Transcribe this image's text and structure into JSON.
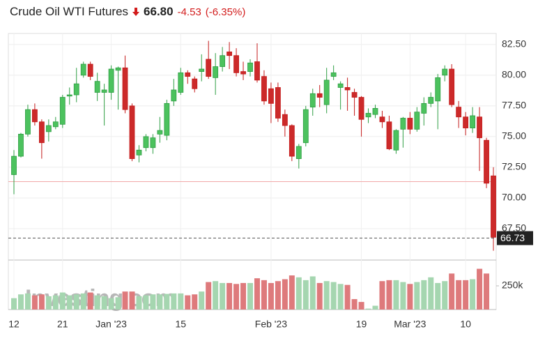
{
  "chart_data": {
    "type": "candlestick",
    "title": "Crude Oil WTI Futures",
    "last": "66.80",
    "change": "-4.53",
    "change_pct": "(-6.35%)",
    "watermark": "Investing.com",
    "categories": [
      "12",
      null,
      null,
      null,
      null,
      null,
      null,
      "21",
      null,
      null,
      null,
      null,
      null,
      null,
      "Jan '23",
      null,
      null,
      null,
      null,
      null,
      null,
      null,
      null,
      null,
      "15",
      null,
      null,
      null,
      null,
      null,
      null,
      null,
      null,
      null,
      null,
      null,
      null,
      "Feb '23",
      null,
      null,
      null,
      null,
      null,
      null,
      null,
      null,
      null,
      null,
      null,
      null,
      "19",
      null,
      null,
      null,
      null,
      null,
      null,
      "Mar '23",
      null,
      null,
      null,
      null,
      null,
      null,
      null,
      "10",
      null,
      null,
      null,
      null
    ],
    "open": [
      71.9,
      73.4,
      75.2,
      77.2,
      76.2,
      75.4,
      75.8,
      76.0,
      78.3,
      78.4,
      80.0,
      80.9,
      78.6,
      78.6,
      78.6,
      80.4,
      80.6,
      77.5,
      73.5,
      74.1,
      74.1,
      75.2,
      75.1,
      77.9,
      78.6,
      80.2,
      79.7,
      80.3,
      81.3,
      79.8,
      80.7,
      81.9,
      81.6,
      80.3,
      80.3,
      81.1,
      79.9,
      78.9,
      79.0,
      76.8,
      75.9,
      73.2,
      74.5,
      77.4,
      78.5,
      77.6,
      79.9,
      79.0,
      79.0,
      78.6,
      78.2,
      76.6,
      76.8,
      76.6,
      76.2,
      73.9,
      75.6,
      76.5,
      75.6,
      76.9,
      77.7,
      77.9,
      80.0,
      80.5,
      77.4,
      76.6,
      75.7,
      76.6,
      74.7,
      71.8
    ],
    "high": [
      73.9,
      75.3,
      77.6,
      77.7,
      76.4,
      76.4,
      76.6,
      78.4,
      79.0,
      80.6,
      81.1,
      81.1,
      80.2,
      79.3,
      80.8,
      80.7,
      81.6,
      77.7,
      74.3,
      75.2,
      75.2,
      76.6,
      78.0,
      79.7,
      80.6,
      80.4,
      79.9,
      81.7,
      82.8,
      81.8,
      82.3,
      82.7,
      82.2,
      81.1,
      81.3,
      82.6,
      80.4,
      79.4,
      79.4,
      77.2,
      76.0,
      74.4,
      77.5,
      78.9,
      79.2,
      80.6,
      80.8,
      79.5,
      79.8,
      78.9,
      78.3,
      77.3,
      77.6,
      77.1,
      76.7,
      75.6,
      76.6,
      77.0,
      77.4,
      78.2,
      78.6,
      80.1,
      80.8,
      80.9,
      77.9,
      77.0,
      77.4,
      77.4,
      74.9,
      72.5
    ],
    "low": [
      70.3,
      73.3,
      75.0,
      75.9,
      73.2,
      74.6,
      75.6,
      75.7,
      77.6,
      77.8,
      79.8,
      79.6,
      77.9,
      75.9,
      78.0,
      77.2,
      76.9,
      73.0,
      72.9,
      73.8,
      73.6,
      74.5,
      74.7,
      77.5,
      78.4,
      79.3,
      78.6,
      79.5,
      79.7,
      78.4,
      80.3,
      80.5,
      79.9,
      79.6,
      79.9,
      79.4,
      77.6,
      76.1,
      76.2,
      75.0,
      73.0,
      72.4,
      74.2,
      76.7,
      77.4,
      76.9,
      79.6,
      77.2,
      77.1,
      76.7,
      75.0,
      76.1,
      76.5,
      75.7,
      73.9,
      73.6,
      74.1,
      75.2,
      75.4,
      75.9,
      77.4,
      75.6,
      79.5,
      77.4,
      75.7,
      75.1,
      75.3,
      72.2,
      70.8,
      65.7
    ],
    "close": [
      73.4,
      75.2,
      77.2,
      76.2,
      74.5,
      75.9,
      76.2,
      78.2,
      78.4,
      79.3,
      80.9,
      79.9,
      79.5,
      78.8,
      80.5,
      80.6,
      77.2,
      73.2,
      73.9,
      75.0,
      74.9,
      75.5,
      77.7,
      78.8,
      80.2,
      79.9,
      78.9,
      80.5,
      79.9,
      80.7,
      81.6,
      81.6,
      80.2,
      80.1,
      81.0,
      79.6,
      77.9,
      77.7,
      76.5,
      75.9,
      73.4,
      74.2,
      77.2,
      78.5,
      78.2,
      79.6,
      80.2,
      79.3,
      78.8,
      78.2,
      76.4,
      76.9,
      77.3,
      76.2,
      74.0,
      75.5,
      76.5,
      75.6,
      77.0,
      77.7,
      78.2,
      79.8,
      80.5,
      77.6,
      76.6,
      75.7,
      76.7,
      74.9,
      71.2,
      66.8
    ],
    "volume": [
      120000,
      160000,
      170000,
      150000,
      160000,
      140000,
      150000,
      180000,
      150000,
      160000,
      170000,
      180000,
      150000,
      140000,
      120000,
      130000,
      190000,
      190000,
      140000,
      150000,
      160000,
      160000,
      165000,
      170000,
      170000,
      150000,
      160000,
      190000,
      290000,
      300000,
      280000,
      280000,
      270000,
      280000,
      280000,
      330000,
      310000,
      280000,
      300000,
      320000,
      360000,
      340000,
      310000,
      350000,
      280000,
      300000,
      290000,
      270000,
      260000,
      110000,
      80000,
      10000,
      40000,
      300000,
      310000,
      310000,
      290000,
      270000,
      290000,
      310000,
      340000,
      280000,
      300000,
      380000,
      310000,
      310000,
      320000,
      430000,
      380000,
      0
    ],
    "ylim": [
      65,
      83.4
    ],
    "yticks": [
      {
        "value": 67.5,
        "label": "67.50"
      },
      {
        "value": 70,
        "label": "70.00"
      },
      {
        "value": 72.5,
        "label": "72.50"
      },
      {
        "value": 75,
        "label": "75.00"
      },
      {
        "value": 77.5,
        "label": "77.50"
      },
      {
        "value": 80,
        "label": "80.00"
      },
      {
        "value": 82.5,
        "label": "82.50"
      }
    ],
    "volume_ylim": [
      0,
      515000
    ],
    "volume_yticks": [
      {
        "value": 250000,
        "label": "250k"
      }
    ],
    "reference_line": 71.33,
    "last_marker": 66.73,
    "up_color": "#2e9e43",
    "down_color": "#c41a1a",
    "up_volume_color": "#a5d6b0",
    "down_volume_color": "#de7a7c",
    "grid": true
  }
}
